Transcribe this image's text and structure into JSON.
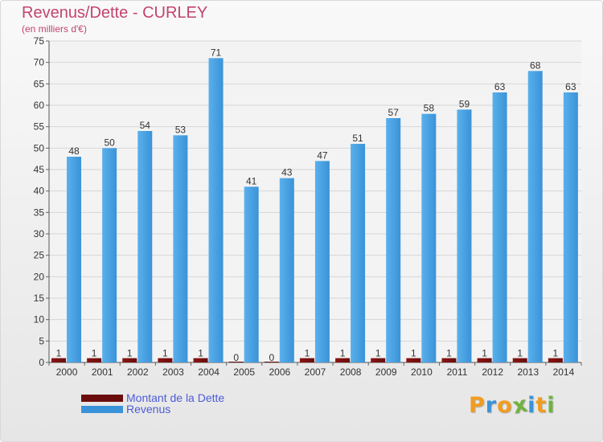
{
  "title": "Revenus/Dette - CURLEY",
  "subtitle": "(en milliers d'€)",
  "colors": {
    "title": "#c2446e",
    "debt": "#6b0d0d",
    "revenue": "#3a93d8",
    "legend_text": "#4c5cd8"
  },
  "legend": [
    {
      "label": "Montant de la Dette",
      "color": "#6b0d0d"
    },
    {
      "label": "Revenus",
      "color": "#3a93d8"
    }
  ],
  "logo": {
    "letters": [
      "P",
      "r",
      "o",
      "x",
      "i",
      "t",
      "i"
    ],
    "colors": [
      "#f29c1e",
      "#3a93d8",
      "#f29c1e",
      "#6fb33d",
      "#3a93d8",
      "#f29c1e",
      "#6fb33d"
    ]
  },
  "chart_data": {
    "type": "bar",
    "title": "Revenus/Dette - CURLEY",
    "ylabel": "(en milliers d'€)",
    "xlabel": "",
    "ylim": [
      0,
      75
    ],
    "ytick_step": 5,
    "grid": true,
    "categories": [
      "2000",
      "2001",
      "2002",
      "2003",
      "2004",
      "2005",
      "2006",
      "2007",
      "2008",
      "2009",
      "2010",
      "2011",
      "2012",
      "2013",
      "2014"
    ],
    "series": [
      {
        "name": "Montant de la Dette",
        "values": [
          1,
          1,
          1,
          1,
          1,
          0,
          0,
          1,
          1,
          1,
          1,
          1,
          1,
          1,
          1
        ]
      },
      {
        "name": "Revenus",
        "values": [
          48,
          50,
          54,
          53,
          71,
          41,
          43,
          47,
          51,
          57,
          58,
          59,
          63,
          68,
          63
        ]
      }
    ]
  }
}
